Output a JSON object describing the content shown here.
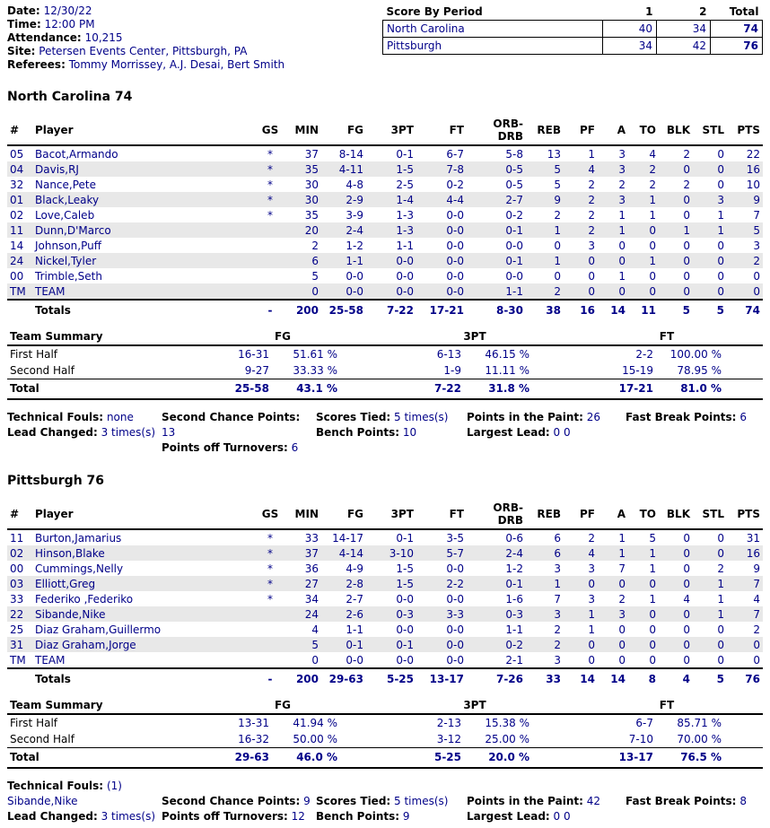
{
  "info": {
    "date_label": "Date:",
    "date": "12/30/22",
    "time_label": "Time:",
    "time": "12:00 PM",
    "attendance_label": "Attendance:",
    "attendance": "10,215",
    "site_label": "Site:",
    "site": "Petersen Events Center, Pittsburgh, PA",
    "referees_label": "Referees:",
    "referees": "Tommy Morrissey, A.J. Desai, Bert Smith"
  },
  "score_by_period": {
    "title": "Score By Period",
    "periods": [
      "1",
      "2",
      "Total"
    ],
    "rows": [
      {
        "team": "North Carolina",
        "p1": "40",
        "p2": "34",
        "total": "74"
      },
      {
        "team": "Pittsburgh",
        "p1": "34",
        "p2": "42",
        "total": "76"
      }
    ]
  },
  "labels": {
    "fg": "FG",
    "tpt": "3PT",
    "ft": "FT"
  },
  "box_headers": [
    "#",
    "Player",
    "GS",
    "MIN",
    "FG",
    "3PT",
    "FT",
    "ORB-DRB",
    "REB",
    "PF",
    "A",
    "TO",
    "BLK",
    "STL",
    "PTS"
  ],
  "nc": {
    "heading": "North Carolina 74",
    "players": [
      {
        "num": "05",
        "name": "Bacot,Armando",
        "gs": "*",
        "min": "37",
        "fg": "8-14",
        "tp": "0-1",
        "ft": "6-7",
        "orb": "5-8",
        "reb": "13",
        "pf": "1",
        "a": "3",
        "to": "4",
        "blk": "2",
        "stl": "0",
        "pts": "22"
      },
      {
        "num": "04",
        "name": "Davis,RJ",
        "gs": "*",
        "min": "35",
        "fg": "4-11",
        "tp": "1-5",
        "ft": "7-8",
        "orb": "0-5",
        "reb": "5",
        "pf": "4",
        "a": "3",
        "to": "2",
        "blk": "0",
        "stl": "0",
        "pts": "16"
      },
      {
        "num": "32",
        "name": "Nance,Pete",
        "gs": "*",
        "min": "30",
        "fg": "4-8",
        "tp": "2-5",
        "ft": "0-2",
        "orb": "0-5",
        "reb": "5",
        "pf": "2",
        "a": "2",
        "to": "2",
        "blk": "2",
        "stl": "0",
        "pts": "10"
      },
      {
        "num": "01",
        "name": "Black,Leaky",
        "gs": "*",
        "min": "30",
        "fg": "2-9",
        "tp": "1-4",
        "ft": "4-4",
        "orb": "2-7",
        "reb": "9",
        "pf": "2",
        "a": "3",
        "to": "1",
        "blk": "0",
        "stl": "3",
        "pts": "9"
      },
      {
        "num": "02",
        "name": "Love,Caleb",
        "gs": "*",
        "min": "35",
        "fg": "3-9",
        "tp": "1-3",
        "ft": "0-0",
        "orb": "0-2",
        "reb": "2",
        "pf": "2",
        "a": "1",
        "to": "1",
        "blk": "0",
        "stl": "1",
        "pts": "7"
      },
      {
        "num": "11",
        "name": "Dunn,D'Marco",
        "gs": "",
        "min": "20",
        "fg": "2-4",
        "tp": "1-3",
        "ft": "0-0",
        "orb": "0-1",
        "reb": "1",
        "pf": "2",
        "a": "1",
        "to": "0",
        "blk": "1",
        "stl": "1",
        "pts": "5"
      },
      {
        "num": "14",
        "name": "Johnson,Puff",
        "gs": "",
        "min": "2",
        "fg": "1-2",
        "tp": "1-1",
        "ft": "0-0",
        "orb": "0-0",
        "reb": "0",
        "pf": "3",
        "a": "0",
        "to": "0",
        "blk": "0",
        "stl": "0",
        "pts": "3"
      },
      {
        "num": "24",
        "name": "Nickel,Tyler",
        "gs": "",
        "min": "6",
        "fg": "1-1",
        "tp": "0-0",
        "ft": "0-0",
        "orb": "0-1",
        "reb": "1",
        "pf": "0",
        "a": "0",
        "to": "1",
        "blk": "0",
        "stl": "0",
        "pts": "2"
      },
      {
        "num": "00",
        "name": "Trimble,Seth",
        "gs": "",
        "min": "5",
        "fg": "0-0",
        "tp": "0-0",
        "ft": "0-0",
        "orb": "0-0",
        "reb": "0",
        "pf": "0",
        "a": "1",
        "to": "0",
        "blk": "0",
        "stl": "0",
        "pts": "0"
      },
      {
        "num": "TM",
        "name": "TEAM",
        "gs": "",
        "min": "0",
        "fg": "0-0",
        "tp": "0-0",
        "ft": "0-0",
        "orb": "1-1",
        "reb": "2",
        "pf": "0",
        "a": "0",
        "to": "0",
        "blk": "0",
        "stl": "0",
        "pts": "0"
      }
    ],
    "totals": {
      "label": "Totals",
      "gs": "-",
      "min": "200",
      "fg": "25-58",
      "tp": "7-22",
      "ft": "17-21",
      "orb": "8-30",
      "reb": "38",
      "pf": "16",
      "a": "14",
      "to": "11",
      "blk": "5",
      "stl": "5",
      "pts": "74"
    },
    "summary": {
      "title": "Team Summary",
      "rows": [
        {
          "label": "First Half",
          "fg_ma": "16-31",
          "fg_pct": "51.61 %",
          "tp_ma": "6-13",
          "tp_pct": "46.15 %",
          "ft_ma": "2-2",
          "ft_pct": "100.00 %"
        },
        {
          "label": "Second Half",
          "fg_ma": "9-27",
          "fg_pct": "33.33 %",
          "tp_ma": "1-9",
          "tp_pct": "11.11 %",
          "ft_ma": "15-19",
          "ft_pct": "78.95 %"
        },
        {
          "label": "Total",
          "fg_ma": "25-58",
          "fg_pct": "43.1 %",
          "tp_ma": "7-22",
          "tp_pct": "31.8 %",
          "ft_ma": "17-21",
          "ft_pct": "81.0 %"
        }
      ]
    },
    "extras": {
      "technical_label": "Technical Fouls:",
      "technical": "none",
      "lead_changed_label": "Lead Changed:",
      "lead_changed": "3 times(s)",
      "second_chance_label": "Second Chance Points:",
      "second_chance": "13",
      "points_off_to_label": "Points off Turnovers:",
      "points_off_to": "6",
      "scores_tied_label": "Scores Tied:",
      "scores_tied": "5 times(s)",
      "bench_label": "Bench Points:",
      "bench": "10",
      "paint_label": "Points in the Paint:",
      "paint": "26",
      "largest_lead_label": "Largest Lead:",
      "largest_lead": "0 0",
      "fast_break_label": "Fast Break Points:",
      "fast_break": "6"
    }
  },
  "pitt": {
    "heading": "Pittsburgh 76",
    "players": [
      {
        "num": "11",
        "name": "Burton,Jamarius",
        "gs": "*",
        "min": "33",
        "fg": "14-17",
        "tp": "0-1",
        "ft": "3-5",
        "orb": "0-6",
        "reb": "6",
        "pf": "2",
        "a": "1",
        "to": "5",
        "blk": "0",
        "stl": "0",
        "pts": "31"
      },
      {
        "num": "02",
        "name": "Hinson,Blake",
        "gs": "*",
        "min": "37",
        "fg": "4-14",
        "tp": "3-10",
        "ft": "5-7",
        "orb": "2-4",
        "reb": "6",
        "pf": "4",
        "a": "1",
        "to": "1",
        "blk": "0",
        "stl": "0",
        "pts": "16"
      },
      {
        "num": "00",
        "name": "Cummings,Nelly",
        "gs": "*",
        "min": "36",
        "fg": "4-9",
        "tp": "1-5",
        "ft": "0-0",
        "orb": "1-2",
        "reb": "3",
        "pf": "3",
        "a": "7",
        "to": "1",
        "blk": "0",
        "stl": "2",
        "pts": "9"
      },
      {
        "num": "03",
        "name": "Elliott,Greg",
        "gs": "*",
        "min": "27",
        "fg": "2-8",
        "tp": "1-5",
        "ft": "2-2",
        "orb": "0-1",
        "reb": "1",
        "pf": "0",
        "a": "0",
        "to": "0",
        "blk": "0",
        "stl": "1",
        "pts": "7"
      },
      {
        "num": "33",
        "name": "Federiko ,Federiko",
        "gs": "*",
        "min": "34",
        "fg": "2-7",
        "tp": "0-0",
        "ft": "0-0",
        "orb": "1-6",
        "reb": "7",
        "pf": "3",
        "a": "2",
        "to": "1",
        "blk": "4",
        "stl": "1",
        "pts": "4"
      },
      {
        "num": "22",
        "name": "Sibande,Nike",
        "gs": "",
        "min": "24",
        "fg": "2-6",
        "tp": "0-3",
        "ft": "3-3",
        "orb": "0-3",
        "reb": "3",
        "pf": "1",
        "a": "3",
        "to": "0",
        "blk": "0",
        "stl": "1",
        "pts": "7"
      },
      {
        "num": "25",
        "name": "Diaz Graham,Guillermo",
        "gs": "",
        "min": "4",
        "fg": "1-1",
        "tp": "0-0",
        "ft": "0-0",
        "orb": "1-1",
        "reb": "2",
        "pf": "1",
        "a": "0",
        "to": "0",
        "blk": "0",
        "stl": "0",
        "pts": "2"
      },
      {
        "num": "31",
        "name": "Diaz Graham,Jorge",
        "gs": "",
        "min": "5",
        "fg": "0-1",
        "tp": "0-1",
        "ft": "0-0",
        "orb": "0-2",
        "reb": "2",
        "pf": "0",
        "a": "0",
        "to": "0",
        "blk": "0",
        "stl": "0",
        "pts": "0"
      },
      {
        "num": "TM",
        "name": "TEAM",
        "gs": "",
        "min": "0",
        "fg": "0-0",
        "tp": "0-0",
        "ft": "0-0",
        "orb": "2-1",
        "reb": "3",
        "pf": "0",
        "a": "0",
        "to": "0",
        "blk": "0",
        "stl": "0",
        "pts": "0"
      }
    ],
    "totals": {
      "label": "Totals",
      "gs": "-",
      "min": "200",
      "fg": "29-63",
      "tp": "5-25",
      "ft": "13-17",
      "orb": "7-26",
      "reb": "33",
      "pf": "14",
      "a": "14",
      "to": "8",
      "blk": "4",
      "stl": "5",
      "pts": "76"
    },
    "summary": {
      "title": "Team Summary",
      "rows": [
        {
          "label": "First Half",
          "fg_ma": "13-31",
          "fg_pct": "41.94 %",
          "tp_ma": "2-13",
          "tp_pct": "15.38 %",
          "ft_ma": "6-7",
          "ft_pct": "85.71 %"
        },
        {
          "label": "Second Half",
          "fg_ma": "16-32",
          "fg_pct": "50.00 %",
          "tp_ma": "3-12",
          "tp_pct": "25.00 %",
          "ft_ma": "7-10",
          "ft_pct": "70.00 %"
        },
        {
          "label": "Total",
          "fg_ma": "29-63",
          "fg_pct": "46.0 %",
          "tp_ma": "5-25",
          "tp_pct": "20.0 %",
          "ft_ma": "13-17",
          "ft_pct": "76.5 %"
        }
      ]
    },
    "extras": {
      "technical_label": "Technical Fouls:",
      "technical": "(1)",
      "technical_player": "Sibande,Nike",
      "lead_changed_label": "Lead Changed:",
      "lead_changed": "3 times(s)",
      "second_chance_label": "Second Chance Points:",
      "second_chance": "9",
      "points_off_to_label": "Points off Turnovers:",
      "points_off_to": "12",
      "scores_tied_label": "Scores Tied:",
      "scores_tied": "5 times(s)",
      "bench_label": "Bench Points:",
      "bench": "9",
      "paint_label": "Points in the Paint:",
      "paint": "42",
      "largest_lead_label": "Largest Lead:",
      "largest_lead": "0 0",
      "fast_break_label": "Fast Break Points:",
      "fast_break": "8"
    }
  }
}
